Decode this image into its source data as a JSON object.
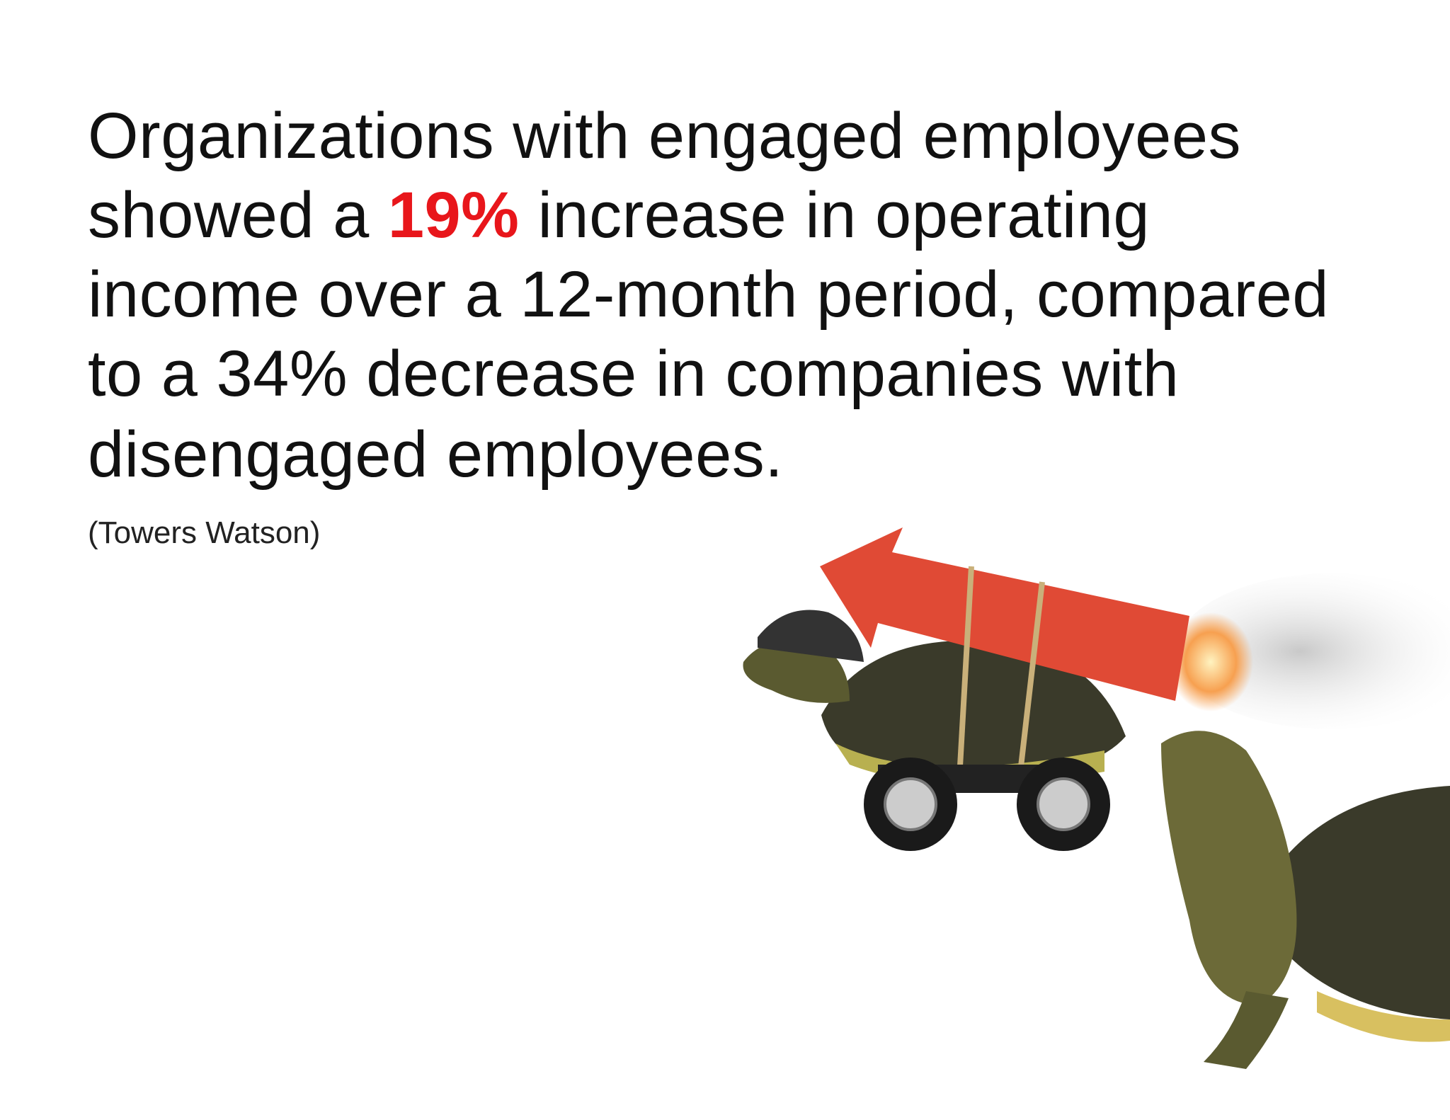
{
  "statement": {
    "line1": "Organizations with engaged employees",
    "line2_before": "showed a",
    "highlight": "19%",
    "line2_after": "increase in operating",
    "line3": "income over a 12-month period, compared",
    "line4": "to a 34% decrease in companies with",
    "line5": "disengaged employees."
  },
  "source": "(Towers Watson)"
}
